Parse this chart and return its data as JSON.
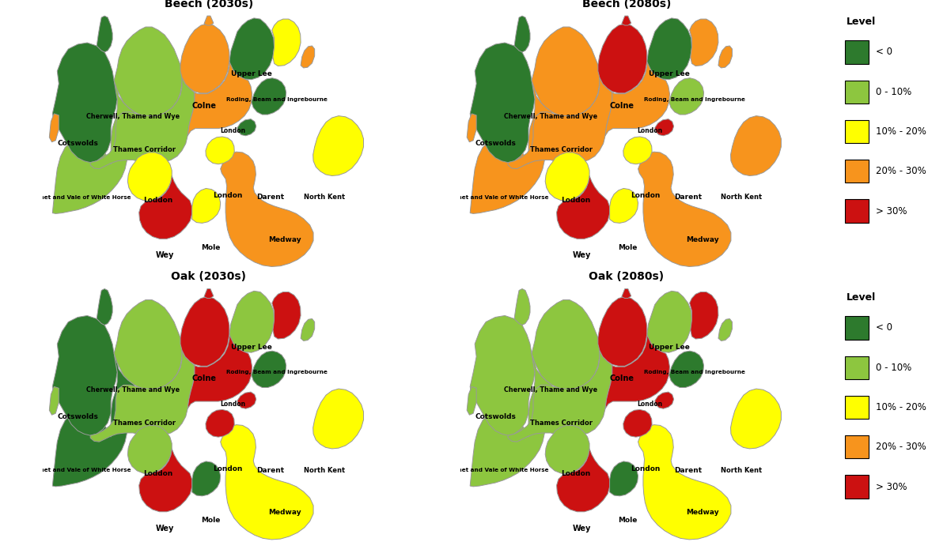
{
  "colors": {
    "dark_green": "#2d7a2d",
    "light_green": "#8dc63f",
    "yellow": "#ffff00",
    "orange": "#f7941d",
    "red": "#cc1111",
    "border": "#999999",
    "background": "#ffffff"
  },
  "legend_labels": [
    "< 0",
    "0 - 10%",
    "10% - 20%",
    "20% - 30%",
    "> 30%"
  ],
  "legend_colors": [
    "#2d7a2d",
    "#8dc63f",
    "#ffff00",
    "#f7941d",
    "#cc1111"
  ],
  "titles": [
    "Beech (2030s)",
    "Beech (2080s)",
    "Oak (2030s)",
    "Oak (2080s)"
  ],
  "beech_2030": {
    "Cotswolds": "dark_green",
    "Cherwell": "light_green",
    "Upper_Lee": "dark_green",
    "Colne": "orange",
    "Roding": "yellow",
    "Thames_Corridor": "light_green",
    "Kennet": "light_green",
    "Loddon": "yellow",
    "London_big": "orange",
    "London_small": "yellow",
    "London_tiny": "dark_green",
    "Darent": "dark_green",
    "North_Kent": "yellow",
    "Wey": "red",
    "Mole": "yellow",
    "Medway": "orange",
    "extra_NE": "orange",
    "extra_W": "orange"
  },
  "beech_2080": {
    "Cotswolds": "dark_green",
    "Cherwell": "orange",
    "Upper_Lee": "dark_green",
    "Colne": "red",
    "Roding": "orange",
    "Thames_Corridor": "orange",
    "Kennet": "orange",
    "Loddon": "yellow",
    "London_big": "orange",
    "London_small": "yellow",
    "London_tiny": "red",
    "Darent": "light_green",
    "North_Kent": "orange",
    "Wey": "red",
    "Mole": "yellow",
    "Medway": "orange",
    "extra_NE": "orange",
    "extra_W": "orange"
  },
  "oak_2030": {
    "Cotswolds": "dark_green",
    "Cherwell": "light_green",
    "Upper_Lee": "light_green",
    "Colne": "red",
    "Roding": "red",
    "Thames_Corridor": "light_green",
    "Kennet": "dark_green",
    "Loddon": "light_green",
    "London_big": "red",
    "London_small": "red",
    "London_tiny": "red",
    "Darent": "dark_green",
    "North_Kent": "yellow",
    "Wey": "red",
    "Mole": "dark_green",
    "Medway": "yellow",
    "extra_NE": "light_green",
    "extra_W": "light_green"
  },
  "oak_2080": {
    "Cotswolds": "light_green",
    "Cherwell": "light_green",
    "Upper_Lee": "light_green",
    "Colne": "red",
    "Roding": "red",
    "Thames_Corridor": "light_green",
    "Kennet": "light_green",
    "Loddon": "light_green",
    "London_big": "red",
    "London_small": "red",
    "London_tiny": "red",
    "Darent": "dark_green",
    "North_Kent": "yellow",
    "Wey": "red",
    "Mole": "dark_green",
    "Medway": "yellow",
    "extra_NE": "light_green",
    "extra_W": "light_green"
  },
  "labels": {
    "Cotswolds": [
      0.09,
      0.6,
      "Cotswolds"
    ],
    "Cherwell": [
      0.265,
      0.685,
      "Cherwell, Thame and Wye"
    ],
    "Upper_Lee": [
      0.64,
      0.82,
      "Upper Lee"
    ],
    "Colne": [
      0.49,
      0.72,
      "Colne"
    ],
    "Roding": [
      0.72,
      0.74,
      "Roding, Beam and Ingrebourne"
    ],
    "London_label": [
      0.58,
      0.64,
      "London"
    ],
    "Thames_Corridor": [
      0.3,
      0.58,
      "Thames Corridor"
    ],
    "Kennet": [
      0.095,
      0.43,
      "Kennet and Vale of White Horse"
    ],
    "Loddon": [
      0.345,
      0.42,
      "Loddon"
    ],
    "London_s_label": [
      0.565,
      0.435,
      "London"
    ],
    "Darent": [
      0.7,
      0.43,
      "Darent"
    ],
    "North_Kent": [
      0.87,
      0.43,
      "North Kent"
    ],
    "Wey": [
      0.365,
      0.245,
      "Wey"
    ],
    "Mole": [
      0.51,
      0.27,
      "Mole"
    ],
    "Medway": [
      0.745,
      0.295,
      "Medway"
    ]
  }
}
